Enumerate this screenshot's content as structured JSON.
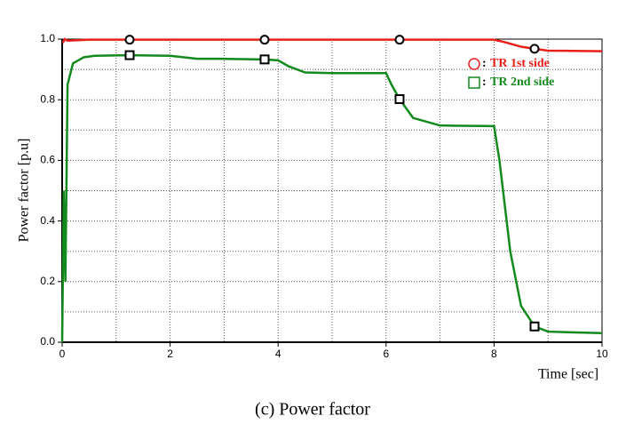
{
  "chart_data": {
    "type": "line",
    "caption": "(c)  Power  factor",
    "x_label": "Time [sec]",
    "y_label": "Power factor [p.u]",
    "xlim": [
      0,
      10
    ],
    "ylim": [
      0,
      1
    ],
    "xticks": [
      0,
      2,
      4,
      6,
      8,
      10
    ],
    "yticks": [
      {
        "value": 0,
        "label": "0.0"
      },
      0.2,
      0.4,
      0.6,
      0.8,
      {
        "value": 1,
        "label": "1.0"
      }
    ],
    "xgrid": [
      1,
      2,
      3,
      4,
      5,
      6,
      7,
      8,
      9
    ],
    "ygrid": [
      0.1,
      0.2,
      0.3,
      0.4,
      0.5,
      0.6,
      0.7,
      0.8,
      0.9
    ],
    "grid": true,
    "legend": "upper right",
    "marker_x": [
      1.25,
      3.75,
      6.25,
      8.75
    ],
    "series": [
      {
        "name": "TR 1st side",
        "color": "#e8201a",
        "marker": "circle",
        "x": [
          0,
          0.02,
          0.05,
          0.1,
          0.5,
          1.25,
          2,
          3,
          3.75,
          4,
          5,
          6,
          6.25,
          7,
          8,
          8.2,
          8.5,
          8.75,
          9,
          10
        ],
        "values": [
          0.99,
          0.99,
          1.0,
          0.995,
          0.998,
          0.998,
          0.998,
          0.998,
          0.998,
          0.998,
          0.998,
          0.998,
          0.998,
          0.998,
          0.998,
          0.99,
          0.975,
          0.968,
          0.962,
          0.96
        ]
      },
      {
        "name": "TR 2nd side",
        "color": "#138a1e",
        "marker": "square",
        "x": [
          0,
          0.03,
          0.06,
          0.1,
          0.2,
          0.4,
          0.6,
          1.25,
          2,
          2.5,
          3,
          3.75,
          4,
          4.2,
          4.5,
          5,
          6,
          6.1,
          6.25,
          6.5,
          7,
          8,
          8.1,
          8.3,
          8.5,
          8.75,
          9,
          10
        ],
        "values": [
          0,
          0.5,
          0.2,
          0.85,
          0.92,
          0.94,
          0.945,
          0.947,
          0.945,
          0.935,
          0.935,
          0.933,
          0.93,
          0.91,
          0.89,
          0.888,
          0.888,
          0.85,
          0.802,
          0.74,
          0.715,
          0.713,
          0.6,
          0.3,
          0.12,
          0.052,
          0.035,
          0.03
        ]
      }
    ]
  }
}
